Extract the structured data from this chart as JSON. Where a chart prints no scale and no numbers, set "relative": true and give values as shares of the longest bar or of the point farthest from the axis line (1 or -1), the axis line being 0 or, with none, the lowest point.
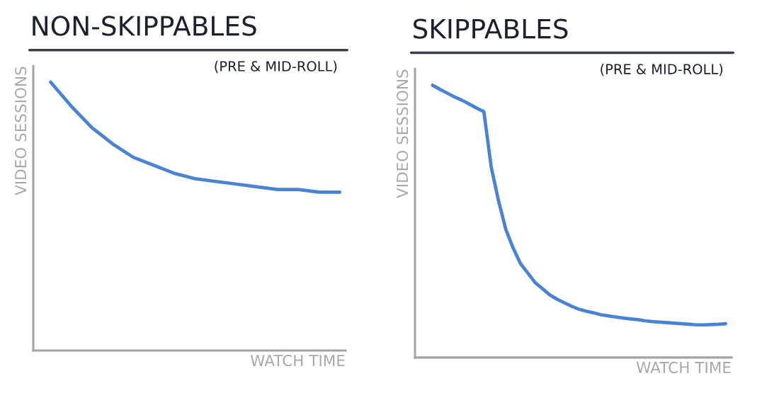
{
  "chart_data": [
    {
      "type": "line",
      "title": "NON-SKIPPABLES",
      "subtitle": "(PRE & MID-ROLL)",
      "xlabel": "WATCH TIME",
      "ylabel": "VIDEO SESSIONS",
      "relative": true,
      "tick_labels": false,
      "categories": [
        null,
        null,
        null,
        null,
        null,
        null,
        null,
        null,
        null,
        null,
        null,
        null,
        null,
        null,
        null
      ],
      "series": [
        {
          "color": "#3b78cf",
          "values": [
            1.0,
            0.91,
            0.83,
            0.77,
            0.72,
            0.69,
            0.66,
            0.64,
            0.63,
            0.62,
            0.61,
            0.6,
            0.6,
            0.59,
            0.59
          ]
        }
      ]
    },
    {
      "type": "line",
      "title": "SKIPPABLES",
      "subtitle": "(PRE & MID-ROLL)",
      "xlabel": "WATCH TIME",
      "ylabel": "VIDEO SESSIONS",
      "relative": true,
      "tick_labels": false,
      "categories": [
        null,
        null,
        null,
        null,
        null,
        null,
        null,
        null,
        null,
        null,
        null,
        null,
        null,
        null,
        null,
        null,
        null,
        null,
        null,
        null,
        null,
        null,
        null,
        null,
        null,
        null,
        null,
        null,
        null,
        null,
        null,
        null,
        null,
        null,
        null,
        null,
        null,
        null,
        null,
        null,
        null
      ],
      "series": [
        {
          "color": "#3b78cf",
          "values": [
            1.0,
            0.985,
            0.971,
            0.957,
            0.945,
            0.931,
            0.916,
            0.903,
            0.7,
            0.576,
            0.47,
            0.402,
            0.345,
            0.31,
            0.275,
            0.253,
            0.23,
            0.214,
            0.201,
            0.188,
            0.177,
            0.17,
            0.164,
            0.157,
            0.153,
            0.149,
            0.145,
            0.142,
            0.139,
            0.135,
            0.132,
            0.13,
            0.128,
            0.126,
            0.124,
            0.122,
            0.12,
            0.12,
            0.121,
            0.122,
            0.124
          ]
        }
      ]
    }
  ]
}
